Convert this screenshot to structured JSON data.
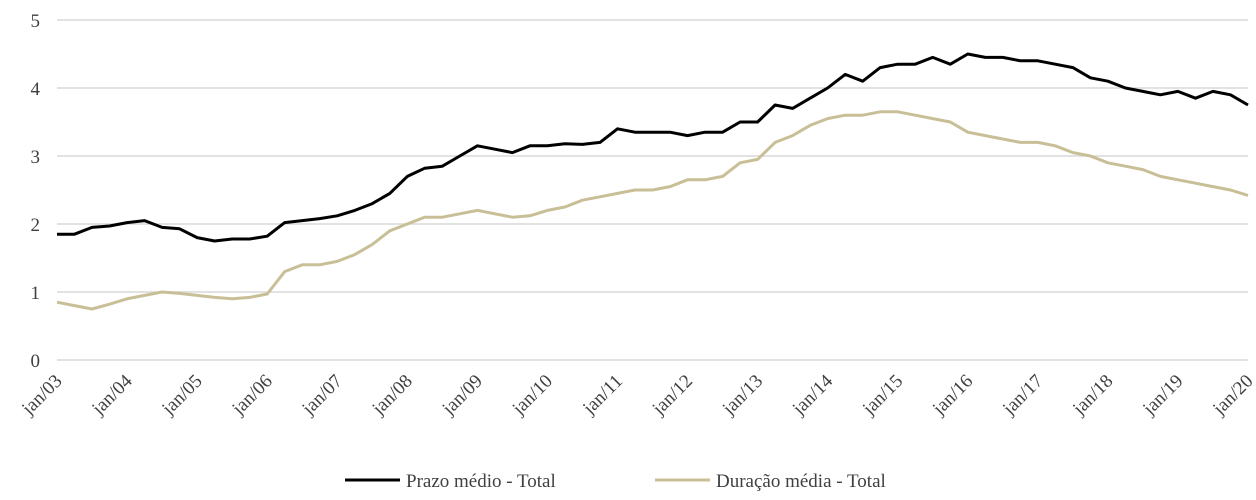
{
  "chart_data": {
    "type": "line",
    "categories": [
      "jan/03",
      null,
      null,
      null,
      "jan/04",
      null,
      null,
      null,
      "jan/05",
      null,
      null,
      null,
      "jan/06",
      null,
      null,
      null,
      "jan/07",
      null,
      null,
      null,
      "jan/08",
      null,
      null,
      null,
      "jan/09",
      null,
      null,
      null,
      "jan/10",
      null,
      null,
      null,
      "jan/11",
      null,
      null,
      null,
      "jan/12",
      null,
      null,
      null,
      "jan/13",
      null,
      null,
      null,
      "jan/14",
      null,
      null,
      null,
      "jan/15",
      null,
      null,
      null,
      "jan/16",
      null,
      null,
      null,
      "jan/17",
      null,
      null,
      null,
      "jan/18",
      null,
      null,
      null,
      "jan/19",
      null,
      null,
      null,
      "jan/20"
    ],
    "series": [
      {
        "name": "Prazo médio - Total",
        "color": "#000000",
        "values": [
          1.85,
          1.85,
          1.95,
          1.97,
          2.02,
          2.05,
          1.95,
          1.93,
          1.8,
          1.75,
          1.78,
          1.78,
          1.82,
          2.02,
          2.05,
          2.08,
          2.12,
          2.2,
          2.3,
          2.45,
          2.7,
          2.82,
          2.85,
          3.0,
          3.15,
          3.1,
          3.05,
          3.15,
          3.15,
          3.18,
          3.17,
          3.2,
          3.4,
          3.35,
          3.35,
          3.35,
          3.3,
          3.35,
          3.35,
          3.5,
          3.5,
          3.75,
          3.7,
          3.85,
          4.0,
          4.2,
          4.1,
          4.3,
          4.35,
          4.35,
          4.45,
          4.35,
          4.5,
          4.45,
          4.45,
          4.4,
          4.4,
          4.35,
          4.3,
          4.15,
          4.1,
          4.0,
          3.95,
          3.9,
          3.95,
          3.85,
          3.95,
          3.9,
          3.75
        ]
      },
      {
        "name": "Duração média - Total",
        "color": "#c9bf97",
        "values": [
          0.85,
          0.8,
          0.75,
          0.82,
          0.9,
          0.95,
          1.0,
          0.98,
          0.95,
          0.92,
          0.9,
          0.92,
          0.97,
          1.3,
          1.4,
          1.4,
          1.45,
          1.55,
          1.7,
          1.9,
          2.0,
          2.1,
          2.1,
          2.15,
          2.2,
          2.15,
          2.1,
          2.12,
          2.2,
          2.25,
          2.35,
          2.4,
          2.45,
          2.5,
          2.5,
          2.55,
          2.65,
          2.65,
          2.7,
          2.9,
          2.95,
          3.2,
          3.3,
          3.45,
          3.55,
          3.6,
          3.6,
          3.65,
          3.65,
          3.6,
          3.55,
          3.5,
          3.35,
          3.3,
          3.25,
          3.2,
          3.2,
          3.15,
          3.05,
          3.0,
          2.9,
          2.85,
          2.8,
          2.7,
          2.65,
          2.6,
          2.55,
          2.5,
          2.42
        ]
      }
    ],
    "ylim": [
      0,
      5
    ],
    "yticks": [
      0,
      1,
      2,
      3,
      4,
      5
    ],
    "grid": true,
    "legend": "bottom"
  }
}
